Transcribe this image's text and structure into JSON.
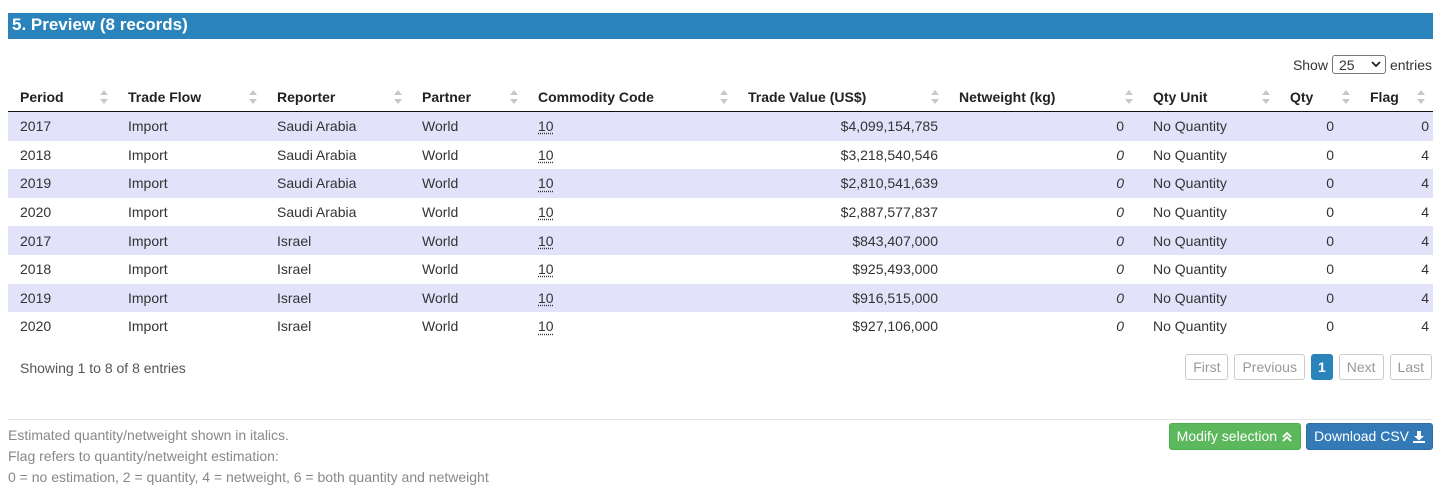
{
  "header": {
    "title": "5. Preview (8 records)"
  },
  "length_menu": {
    "show_label": "Show",
    "value": "25",
    "entries_label": "entries"
  },
  "table": {
    "columns": [
      "Period",
      "Trade Flow",
      "Reporter",
      "Partner",
      "Commodity Code",
      "Trade Value (US$)",
      "Netweight (kg)",
      "Qty Unit",
      "Qty",
      "Flag"
    ],
    "rows": [
      {
        "period": "2017",
        "flow": "Import",
        "reporter": "Saudi Arabia",
        "partner": "World",
        "code": "10",
        "value": "$4,099,154,785",
        "netweight": "0",
        "netweight_estimated": false,
        "unit": "No Quantity",
        "qty": "0",
        "flag": "0"
      },
      {
        "period": "2018",
        "flow": "Import",
        "reporter": "Saudi Arabia",
        "partner": "World",
        "code": "10",
        "value": "$3,218,540,546",
        "netweight": "0",
        "netweight_estimated": true,
        "unit": "No Quantity",
        "qty": "0",
        "flag": "4"
      },
      {
        "period": "2019",
        "flow": "Import",
        "reporter": "Saudi Arabia",
        "partner": "World",
        "code": "10",
        "value": "$2,810,541,639",
        "netweight": "0",
        "netweight_estimated": true,
        "unit": "No Quantity",
        "qty": "0",
        "flag": "4"
      },
      {
        "period": "2020",
        "flow": "Import",
        "reporter": "Saudi Arabia",
        "partner": "World",
        "code": "10",
        "value": "$2,887,577,837",
        "netweight": "0",
        "netweight_estimated": true,
        "unit": "No Quantity",
        "qty": "0",
        "flag": "4"
      },
      {
        "period": "2017",
        "flow": "Import",
        "reporter": "Israel",
        "partner": "World",
        "code": "10",
        "value": "$843,407,000",
        "netweight": "0",
        "netweight_estimated": true,
        "unit": "No Quantity",
        "qty": "0",
        "flag": "4"
      },
      {
        "period": "2018",
        "flow": "Import",
        "reporter": "Israel",
        "partner": "World",
        "code": "10",
        "value": "$925,493,000",
        "netweight": "0",
        "netweight_estimated": true,
        "unit": "No Quantity",
        "qty": "0",
        "flag": "4"
      },
      {
        "period": "2019",
        "flow": "Import",
        "reporter": "Israel",
        "partner": "World",
        "code": "10",
        "value": "$916,515,000",
        "netweight": "0",
        "netweight_estimated": true,
        "unit": "No Quantity",
        "qty": "0",
        "flag": "4"
      },
      {
        "period": "2020",
        "flow": "Import",
        "reporter": "Israel",
        "partner": "World",
        "code": "10",
        "value": "$927,106,000",
        "netweight": "0",
        "netweight_estimated": true,
        "unit": "No Quantity",
        "qty": "0",
        "flag": "4"
      }
    ]
  },
  "info": "Showing 1 to 8 of 8 entries",
  "pagination": {
    "first": "First",
    "previous": "Previous",
    "current": "1",
    "next": "Next",
    "last": "Last"
  },
  "notes": [
    "Estimated quantity/netweight shown in italics.",
    "Flag refers to quantity/netweight estimation:",
    "0 = no estimation, 2 = quantity, 4 = netweight, 6 = both quantity and netweight"
  ],
  "buttons": {
    "modify": "Modify selection",
    "modify_icon": "double-chevron-up-icon",
    "download": "Download CSV",
    "download_icon": "download-icon"
  },
  "colors": {
    "header_bg": "#2b83bb",
    "stripe": "#e2e2fb",
    "modify_btn": "#5cb85c",
    "download_btn": "#337ab7"
  }
}
